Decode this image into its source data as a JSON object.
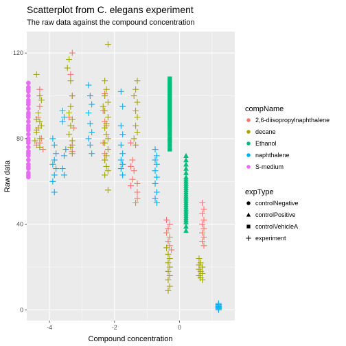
{
  "chart_data": {
    "type": "scatter",
    "title": "Scatterplot from C. elegans experiment",
    "subtitle": "The raw data against the compound concentration",
    "xlabel": "Compound concentration",
    "ylabel": "Raw data",
    "xlim": [
      -4.7,
      1.7
    ],
    "ylim": [
      -5,
      130
    ],
    "x_ticks": [
      -4,
      -2,
      0
    ],
    "y_ticks": [
      0,
      40,
      80,
      120
    ],
    "grid": true,
    "legends": [
      {
        "title": "compName",
        "entries": [
          {
            "label": "2,6-diisopropylnaphthalene",
            "color": "#F8766D"
          },
          {
            "label": "decane",
            "color": "#A3A500"
          },
          {
            "label": "Ethanol",
            "color": "#00BF7D"
          },
          {
            "label": "naphthalene",
            "color": "#00B0F6"
          },
          {
            "label": "S-medium",
            "color": "#E76BF3"
          }
        ]
      },
      {
        "title": "expType",
        "entries": [
          {
            "label": "controlNegative",
            "shape": "circle"
          },
          {
            "label": "controlPositive",
            "shape": "triangle"
          },
          {
            "label": "controlVehicleA",
            "shape": "square"
          },
          {
            "label": "experiment",
            "shape": "plus"
          }
        ]
      }
    ],
    "series": [
      {
        "compName": "S-medium",
        "expType": "controlNegative",
        "shape": "circle",
        "color": "#E76BF3",
        "x": -4.65,
        "y": [
          62,
          64,
          66,
          68,
          70,
          72,
          74,
          76,
          78,
          80,
          82,
          84,
          86,
          88,
          90,
          92,
          94,
          96,
          98,
          100,
          102,
          104,
          106,
          63,
          67,
          73,
          79,
          85,
          91,
          97,
          103
        ]
      },
      {
        "compName": "Ethanol",
        "expType": "controlVehicleA",
        "shape": "square",
        "color": "#00BF7D",
        "x": -0.3,
        "y": [
          75,
          77,
          79,
          82,
          84,
          86,
          87,
          88,
          89,
          90,
          92,
          94,
          95,
          96,
          97,
          98,
          100,
          101,
          102,
          103,
          104,
          105,
          106,
          107,
          108,
          80,
          85,
          91,
          99,
          93
        ]
      },
      {
        "compName": "Ethanol",
        "expType": "controlPositive",
        "shape": "triangle",
        "color": "#00BF7D",
        "x": 0.2,
        "y": [
          37,
          39,
          41,
          42,
          44,
          45,
          46,
          47,
          48,
          49,
          50,
          51,
          52,
          53,
          54,
          55,
          56,
          57,
          58,
          59,
          60,
          61,
          62,
          64,
          66,
          68,
          70,
          72,
          43,
          53
        ]
      },
      {
        "compName": "naphthalene",
        "expType": "experiment",
        "shape": "plus",
        "color": "#00B0F6",
        "x": 1.2,
        "y": [
          0,
          0.5,
          1,
          1,
          1.5,
          2,
          2,
          2.5,
          3,
          1,
          0.5,
          1.5
        ]
      },
      {
        "compName": "2,6-diisopropylnaphthalene",
        "expType": "experiment",
        "shape": "plus",
        "color": "#F8766D",
        "points": [
          [
            -4.3,
            103
          ],
          [
            -4.3,
            95
          ],
          [
            -4.35,
            90
          ],
          [
            -4.4,
            84
          ],
          [
            -4.25,
            80
          ],
          [
            -4.3,
            78
          ],
          [
            -4.2,
            75
          ],
          [
            -4.4,
            77
          ],
          [
            -3.3,
            120
          ],
          [
            -3.35,
            110
          ],
          [
            -3.3,
            100
          ],
          [
            -3.4,
            90
          ],
          [
            -3.25,
            85
          ],
          [
            -3.3,
            77
          ],
          [
            -3.3,
            74
          ],
          [
            -2.3,
            101
          ],
          [
            -2.35,
            93
          ],
          [
            -2.3,
            88
          ],
          [
            -2.25,
            86
          ],
          [
            -2.35,
            78
          ],
          [
            -2.3,
            73
          ],
          [
            -2.3,
            70
          ],
          [
            -1.5,
            78
          ],
          [
            -1.45,
            70
          ],
          [
            -1.5,
            67
          ],
          [
            -1.4,
            65
          ],
          [
            -1.45,
            61
          ],
          [
            -1.5,
            58
          ],
          [
            -1.3,
            59
          ],
          [
            -1.3,
            55
          ],
          [
            -1.3,
            52
          ],
          [
            -1.35,
            50
          ],
          [
            -0.4,
            42
          ],
          [
            -0.3,
            40
          ],
          [
            -0.35,
            38
          ],
          [
            -0.4,
            36
          ],
          [
            -0.3,
            34
          ],
          [
            -0.35,
            32
          ],
          [
            -0.3,
            30
          ],
          [
            -0.25,
            28
          ],
          [
            0.7,
            50
          ],
          [
            0.75,
            47
          ],
          [
            0.7,
            45
          ],
          [
            0.75,
            42
          ],
          [
            0.7,
            40
          ],
          [
            0.75,
            38
          ],
          [
            0.7,
            36
          ],
          [
            0.75,
            34
          ],
          [
            0.7,
            32
          ],
          [
            0.75,
            30
          ]
        ]
      },
      {
        "compName": "decane",
        "expType": "experiment",
        "shape": "plus",
        "color": "#A3A500",
        "points": [
          [
            -4.4,
            110
          ],
          [
            -4.3,
            100
          ],
          [
            -4.25,
            98
          ],
          [
            -4.35,
            92
          ],
          [
            -4.4,
            89
          ],
          [
            -4.3,
            88
          ],
          [
            -4.25,
            86
          ],
          [
            -4.35,
            85
          ],
          [
            -4.4,
            83
          ],
          [
            -4.3,
            80
          ],
          [
            -4.45,
            79
          ],
          [
            -4.3,
            76
          ],
          [
            -3.4,
            117
          ],
          [
            -3.45,
            113
          ],
          [
            -3.35,
            107
          ],
          [
            -3.3,
            100
          ],
          [
            -3.35,
            95
          ],
          [
            -3.4,
            92
          ],
          [
            -3.3,
            89
          ],
          [
            -3.35,
            86
          ],
          [
            -3.4,
            82
          ],
          [
            -3.3,
            79
          ],
          [
            -3.35,
            76
          ],
          [
            -3.3,
            73
          ],
          [
            -2.2,
            124
          ],
          [
            -2.3,
            107
          ],
          [
            -2.25,
            103
          ],
          [
            -2.3,
            100
          ],
          [
            -2.2,
            97
          ],
          [
            -2.35,
            95
          ],
          [
            -2.3,
            93
          ],
          [
            -2.2,
            90
          ],
          [
            -2.25,
            87
          ],
          [
            -2.3,
            85
          ],
          [
            -2.25,
            82
          ],
          [
            -2.2,
            80
          ],
          [
            -2.3,
            78
          ],
          [
            -2.2,
            75
          ],
          [
            -2.25,
            72
          ],
          [
            -2.3,
            70
          ],
          [
            -2.25,
            67
          ],
          [
            -2.2,
            65
          ],
          [
            -2.3,
            63
          ],
          [
            -2.2,
            56
          ],
          [
            -1.3,
            107
          ],
          [
            -1.35,
            103
          ],
          [
            -1.4,
            100
          ],
          [
            -1.3,
            97
          ],
          [
            -1.35,
            93
          ],
          [
            -1.3,
            90
          ],
          [
            -1.35,
            86
          ],
          [
            -1.3,
            83
          ],
          [
            -1.4,
            80
          ],
          [
            -1.35,
            77
          ],
          [
            -0.4,
            29
          ],
          [
            -0.35,
            26
          ],
          [
            -0.3,
            24
          ],
          [
            -0.35,
            22
          ],
          [
            -0.3,
            20
          ],
          [
            -0.35,
            18
          ],
          [
            -0.3,
            16
          ],
          [
            -0.35,
            14
          ],
          [
            -0.3,
            11
          ],
          [
            -0.35,
            9
          ],
          [
            0.6,
            24
          ],
          [
            0.65,
            22
          ],
          [
            0.7,
            20
          ],
          [
            0.6,
            19
          ],
          [
            0.65,
            18
          ],
          [
            0.7,
            17
          ],
          [
            0.6,
            16
          ],
          [
            0.65,
            15
          ],
          [
            0.7,
            14
          ],
          [
            0.6,
            21
          ]
        ]
      },
      {
        "compName": "naphthalene",
        "expType": "experiment",
        "shape": "plus",
        "color": "#00B0F6",
        "points": [
          [
            -3.9,
            80
          ],
          [
            -3.85,
            77
          ],
          [
            -3.8,
            73
          ],
          [
            -3.85,
            70
          ],
          [
            -3.9,
            68
          ],
          [
            -3.8,
            66
          ],
          [
            -3.85,
            63
          ],
          [
            -3.9,
            60
          ],
          [
            -3.85,
            55
          ],
          [
            -3.6,
            93
          ],
          [
            -3.55,
            90
          ],
          [
            -3.6,
            88
          ],
          [
            -3.5,
            75
          ],
          [
            -3.55,
            72
          ],
          [
            -3.6,
            66
          ],
          [
            -3.55,
            63
          ],
          [
            -2.8,
            105
          ],
          [
            -2.75,
            100
          ],
          [
            -2.7,
            96
          ],
          [
            -2.8,
            92
          ],
          [
            -2.75,
            87
          ],
          [
            -2.7,
            83
          ],
          [
            -2.8,
            80
          ],
          [
            -2.75,
            77
          ],
          [
            -2.7,
            73
          ],
          [
            -1.8,
            102
          ],
          [
            -1.75,
            95
          ],
          [
            -1.8,
            86
          ],
          [
            -1.75,
            82
          ],
          [
            -1.8,
            77
          ],
          [
            -1.75,
            73
          ],
          [
            -1.8,
            70
          ],
          [
            -1.75,
            68
          ],
          [
            -1.8,
            66
          ],
          [
            -1.75,
            63
          ],
          [
            -0.75,
            75
          ],
          [
            -0.7,
            72
          ],
          [
            -0.75,
            70
          ],
          [
            -0.7,
            68
          ],
          [
            -0.75,
            65
          ],
          [
            -0.7,
            62
          ],
          [
            -0.75,
            59
          ],
          [
            -0.7,
            55
          ],
          [
            -0.75,
            52
          ],
          [
            -0.7,
            50
          ]
        ]
      }
    ]
  }
}
